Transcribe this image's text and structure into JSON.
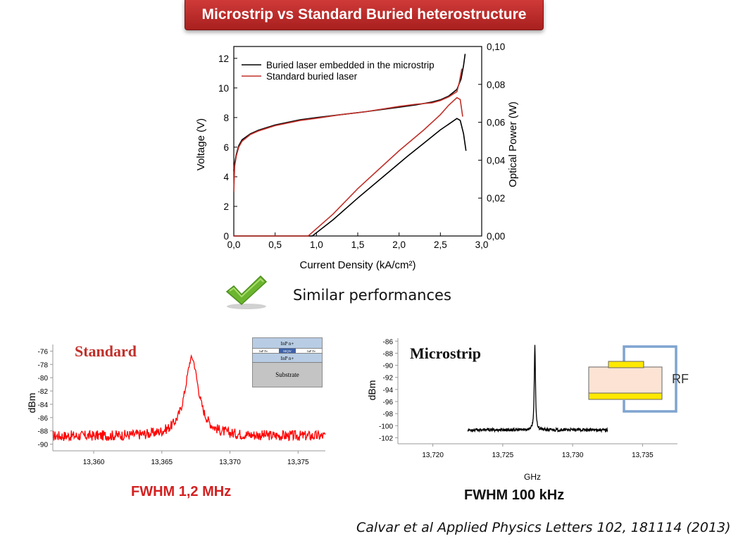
{
  "title": "Microstrip vs Standard Buried heterostructure",
  "similar_text": "Similar performances",
  "colors": {
    "banner": "#c02a2a",
    "black_series": "#000000",
    "red_series": "#c0302a",
    "standard_spectrum": "#ff0000",
    "check": "#6cb52f"
  },
  "icons": {
    "check": "check-mark-icon"
  },
  "chart_data": [
    {
      "type": "line",
      "xlabel": "Current Density (kA/cm²)",
      "ylabel": "Voltage (V)",
      "y2label": "Optical Power (W)",
      "xlim": [
        0,
        3
      ],
      "ylim": [
        0,
        12.8
      ],
      "y2lim": [
        0,
        0.1
      ],
      "x_ticks": [
        "0,0",
        "0,5",
        "1,0",
        "1,5",
        "2,0",
        "2,5",
        "3,0"
      ],
      "y_ticks": [
        "0",
        "2",
        "4",
        "6",
        "8",
        "10",
        "12"
      ],
      "y2_ticks": [
        "0,00",
        "0,02",
        "0,04",
        "0,06",
        "0,08",
        "0,10"
      ],
      "legend": [
        "Buried laser embedded in the microstrip",
        "Standard buried laser"
      ],
      "legend_position": "top-left",
      "series": [
        {
          "name": "Buried laser embedded in the microstrip",
          "axis": "voltage",
          "x": [
            0,
            0.01,
            0.03,
            0.06,
            0.1,
            0.2,
            0.3,
            0.5,
            0.8,
            1.0,
            1.3,
            1.6,
            2.0,
            2.2,
            2.4,
            2.5,
            2.6,
            2.7,
            2.75,
            2.78,
            2.8
          ],
          "y": [
            4.4,
            4.9,
            5.5,
            6.1,
            6.5,
            6.9,
            7.15,
            7.5,
            7.85,
            8.0,
            8.2,
            8.4,
            8.7,
            8.85,
            9.05,
            9.2,
            9.45,
            9.9,
            10.6,
            11.5,
            12.3
          ]
        },
        {
          "name": "Standard buried laser",
          "axis": "voltage",
          "x": [
            0,
            0.01,
            0.03,
            0.06,
            0.1,
            0.2,
            0.3,
            0.5,
            0.8,
            1.0,
            1.3,
            1.6,
            2.0,
            2.2,
            2.4,
            2.5,
            2.6,
            2.7,
            2.73,
            2.76
          ],
          "y": [
            3.0,
            4.7,
            5.4,
            6.0,
            6.4,
            6.85,
            7.1,
            7.45,
            7.8,
            7.95,
            8.2,
            8.4,
            8.75,
            8.9,
            9.0,
            9.15,
            9.4,
            9.75,
            10.4,
            11.3
          ]
        },
        {
          "name": "Buried laser embedded in the microstrip",
          "axis": "power",
          "x": [
            0,
            0.95,
            1.2,
            1.5,
            1.8,
            2.1,
            2.3,
            2.5,
            2.6,
            2.7,
            2.74,
            2.78,
            2.81
          ],
          "y": [
            0,
            0,
            0.0085,
            0.02,
            0.031,
            0.042,
            0.049,
            0.056,
            0.059,
            0.062,
            0.061,
            0.054,
            0.045
          ]
        },
        {
          "name": "Standard buried laser",
          "axis": "power",
          "x": [
            0,
            0.9,
            1.2,
            1.5,
            1.8,
            2.0,
            2.3,
            2.5,
            2.6,
            2.7,
            2.74,
            2.77
          ],
          "y": [
            0,
            0,
            0.0115,
            0.025,
            0.037,
            0.045,
            0.056,
            0.064,
            0.069,
            0.073,
            0.072,
            0.063
          ]
        }
      ]
    },
    {
      "type": "line",
      "title": "Standard",
      "ylabel": "dBm",
      "xlim": [
        13.357,
        13.377
      ],
      "ylim": [
        -91,
        -75
      ],
      "x_ticks": [
        "13,360",
        "13,365",
        "13,370",
        "13,375"
      ],
      "x_tick_values": [
        13.36,
        13.365,
        13.37,
        13.375
      ],
      "y_ticks": [
        "-76",
        "-78",
        "-80",
        "-82",
        "-84",
        "-86",
        "-88",
        "-90"
      ],
      "peak": {
        "x": 13.3672,
        "y": -77.0,
        "floor": -88.8,
        "hwhm": 0.0006
      },
      "fwhm_label": "FWHM 1,2 MHz"
    },
    {
      "type": "line",
      "title": "Microstrip",
      "ylabel": "dBm",
      "xlabel": "GHz",
      "xlim": [
        13.7175,
        13.7375
      ],
      "ylim": [
        -103,
        -85.5
      ],
      "x_ticks": [
        "13,720",
        "13,725",
        "13,730",
        "13,735"
      ],
      "x_tick_values": [
        13.72,
        13.725,
        13.73,
        13.735
      ],
      "y_ticks": [
        "-86",
        "-88",
        "-90",
        "-92",
        "-94",
        "-96",
        "-98",
        "-100",
        "-102"
      ],
      "peak": {
        "x": 13.7273,
        "y": -86.6,
        "floor": -100.7,
        "hwhm": 5e-05,
        "x_start": 13.7225,
        "x_end": 13.7325
      },
      "fwhm_label": "FWHM 100 kHz"
    }
  ],
  "insets": {
    "standard": {
      "top": "InP n+",
      "active_left": "InP Fe",
      "active_center": "MQW",
      "active_right": "InP Fe",
      "bottom": "InP n+",
      "substrate": "Substrate"
    },
    "microstrip": {
      "rf_label": "RF"
    }
  },
  "citation": "Calvar et al Applied Physics Letters 102, 181114 (2013)"
}
